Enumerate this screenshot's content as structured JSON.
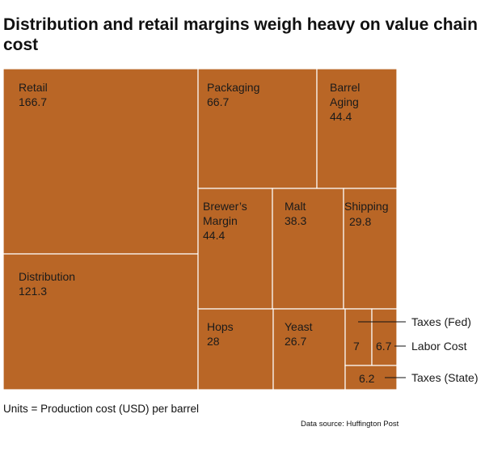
{
  "title": "Distribution and retail margins weigh heavy on value chain cost",
  "units_note": "Units = Production cost (USD) per barrel",
  "source_note": "Data source: Huffington Post",
  "chart_data": {
    "type": "treemap",
    "title": "Distribution and retail margins weigh heavy on value chain cost",
    "fill_color": "#b96626",
    "border_color": "#ffffff",
    "items": [
      {
        "name": "Retail",
        "value": 166.7
      },
      {
        "name": "Distribution",
        "value": 121.3
      },
      {
        "name": "Packaging",
        "value": 66.7
      },
      {
        "name": "Barrel Aging",
        "value": 44.4
      },
      {
        "name": "Brewer's Margin",
        "value": 44.4
      },
      {
        "name": "Malt",
        "value": 38.3
      },
      {
        "name": "Shipping",
        "value": 29.8
      },
      {
        "name": "Hops",
        "value": 28
      },
      {
        "name": "Yeast",
        "value": 26.7
      },
      {
        "name": "Taxes (Fed)",
        "value": 7
      },
      {
        "name": "Labor Cost",
        "value": 6.7
      },
      {
        "name": "Taxes (State)",
        "value": 6.2
      }
    ]
  }
}
